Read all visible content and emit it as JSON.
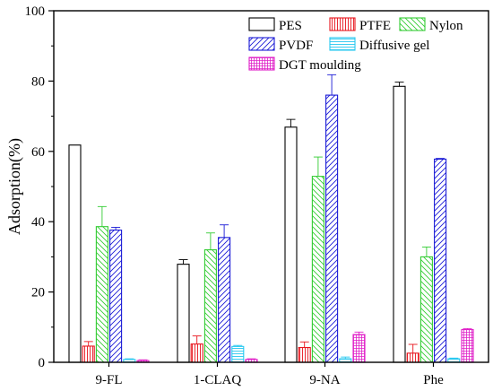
{
  "chart_data": {
    "type": "bar",
    "title": "",
    "xlabel": "",
    "ylabel": "Adsorption(%)",
    "ylim": [
      0,
      100
    ],
    "yticks": [
      0,
      20,
      40,
      60,
      80,
      100
    ],
    "grid": false,
    "legend_position": "top-right",
    "categories": [
      "9-FL",
      "1-CLAQ",
      "9-NA",
      "Phe"
    ],
    "series": [
      {
        "name": "PES",
        "color": "#000000",
        "pattern": "none",
        "values": [
          61.8,
          27.9,
          66.9,
          78.5
        ],
        "errors": [
          0,
          1.3,
          2.2,
          1.2
        ]
      },
      {
        "name": "PTFE",
        "color": "#e8141c",
        "pattern": "vertical-lines",
        "values": [
          4.6,
          5.2,
          4.2,
          2.6
        ],
        "errors": [
          1.3,
          2.3,
          1.6,
          2.5
        ]
      },
      {
        "name": "Nylon",
        "color": "#33cc33",
        "pattern": "back-diagonal",
        "values": [
          38.6,
          32.0,
          52.9,
          30.0
        ],
        "errors": [
          5.7,
          4.8,
          5.5,
          2.8
        ]
      },
      {
        "name": "PVDF",
        "color": "#1a1ad6",
        "pattern": "forward-diagonal",
        "values": [
          37.6,
          35.5,
          76.0,
          57.8
        ],
        "errors": [
          0.8,
          3.6,
          5.8,
          0.2
        ]
      },
      {
        "name": "Diffusive gel",
        "color": "#27c8f0",
        "pattern": "horizontal-lines",
        "values": [
          0.8,
          4.5,
          1.0,
          1.0
        ],
        "errors": [
          0.2,
          0.3,
          0.5,
          0.2
        ]
      },
      {
        "name": "DGT moulding",
        "color": "#e020c8",
        "pattern": "grid",
        "values": [
          0.5,
          0.8,
          7.9,
          9.3
        ],
        "errors": [
          0.2,
          0.2,
          0.7,
          0.3
        ]
      }
    ]
  }
}
